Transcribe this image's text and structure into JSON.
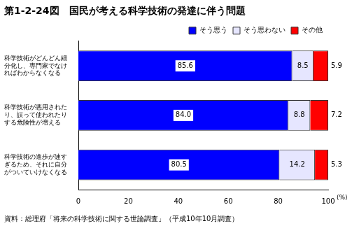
{
  "chart_data": {
    "type": "bar",
    "orientation": "horizontal",
    "stacked": true,
    "title": "第1-2-24図　国民が考える科学技術の発達に伴う問題",
    "source": "資料：総理府「将来の科学技術に関する世論調査」（平成10年10月調査）",
    "xlabel": "(%)",
    "categories": [
      [
        "科学技術がどんどん細",
        "分化し、専門家でなけ",
        "ればわからなくなる"
      ],
      [
        "科学技術が悪用された",
        "り、誤って使われたり",
        "する危険性が増える"
      ],
      [
        "科学技術の進歩が速す",
        "ぎるため、それに自分",
        "がついていけなくなる"
      ]
    ],
    "series": [
      {
        "name": "そう思う",
        "color": "#0000ff",
        "values": [
          85.6,
          84.0,
          80.5
        ],
        "value_labels": [
          "85.6",
          "84.0",
          "80.5"
        ]
      },
      {
        "name": "そう思わない",
        "color": "#e6e6ff",
        "values": [
          8.5,
          8.8,
          14.2
        ]
      },
      {
        "name": "その他",
        "color": "#ff0000",
        "values": [
          5.9,
          7.2,
          5.3
        ]
      }
    ],
    "xlim": [
      0,
      100
    ],
    "xticks": [
      0,
      20,
      40,
      60,
      80,
      100
    ],
    "grid": false,
    "legend": "top-right",
    "data_labels": true
  }
}
